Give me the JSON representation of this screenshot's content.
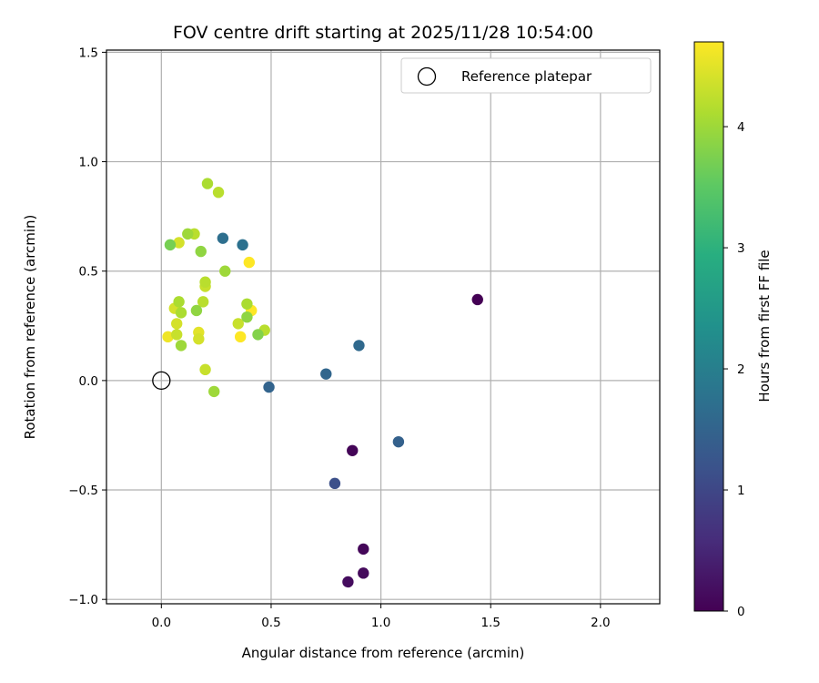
{
  "chart_data": {
    "type": "scatter",
    "title": "FOV centre drift starting at 2025/11/28 10:54:00",
    "xlabel": "Angular distance from reference (arcmin)",
    "ylabel": "Rotation from reference (arcmin)",
    "xlim": [
      -0.25,
      2.27
    ],
    "ylim": [
      -1.02,
      1.51
    ],
    "xticks": [
      0.0,
      0.5,
      1.0,
      1.5,
      2.0
    ],
    "xtick_labels": [
      "0.0",
      "0.5",
      "1.0",
      "1.5",
      "2.0"
    ],
    "yticks": [
      -1.0,
      -0.5,
      0.0,
      0.5,
      1.0,
      1.5
    ],
    "ytick_labels": [
      "−1.0",
      "−0.5",
      "0.0",
      "0.5",
      "1.0",
      "1.5"
    ],
    "grid": true,
    "legend": {
      "label": "Reference platepar",
      "position": "top-right"
    },
    "reference_point": {
      "x": 0.0,
      "y": 0.0
    },
    "colorbar": {
      "label": "Hours from first FF file",
      "range": [
        0,
        4.7
      ],
      "ticks": [
        0,
        1,
        2,
        3,
        4
      ],
      "tick_labels": [
        "0",
        "1",
        "2",
        "3",
        "4"
      ],
      "colormap": "viridis"
    },
    "points": [
      {
        "x": 1.44,
        "y": 0.37,
        "hours": 0.0
      },
      {
        "x": 0.87,
        "y": -0.32,
        "hours": 0.05
      },
      {
        "x": 0.92,
        "y": -0.77,
        "hours": 0.08
      },
      {
        "x": 0.92,
        "y": -0.88,
        "hours": 0.12
      },
      {
        "x": 0.85,
        "y": -0.92,
        "hours": 0.15
      },
      {
        "x": 0.79,
        "y": -0.47,
        "hours": 1.15
      },
      {
        "x": 1.08,
        "y": -0.28,
        "hours": 1.45
      },
      {
        "x": 0.49,
        "y": -0.03,
        "hours": 1.5
      },
      {
        "x": 0.75,
        "y": 0.03,
        "hours": 1.55
      },
      {
        "x": 0.9,
        "y": 0.16,
        "hours": 1.6
      },
      {
        "x": 0.28,
        "y": 0.65,
        "hours": 1.7
      },
      {
        "x": 0.37,
        "y": 0.62,
        "hours": 1.75
      },
      {
        "x": 0.04,
        "y": 0.62,
        "hours": 3.7
      },
      {
        "x": 0.08,
        "y": 0.63,
        "hours": 4.4
      },
      {
        "x": 0.12,
        "y": 0.67,
        "hours": 4.0
      },
      {
        "x": 0.15,
        "y": 0.67,
        "hours": 4.2
      },
      {
        "x": 0.18,
        "y": 0.59,
        "hours": 3.9
      },
      {
        "x": 0.21,
        "y": 0.9,
        "hours": 4.1
      },
      {
        "x": 0.26,
        "y": 0.86,
        "hours": 4.2
      },
      {
        "x": 0.29,
        "y": 0.5,
        "hours": 4.0
      },
      {
        "x": 0.4,
        "y": 0.54,
        "hours": 4.7
      },
      {
        "x": 0.2,
        "y": 0.45,
        "hours": 4.2
      },
      {
        "x": 0.2,
        "y": 0.43,
        "hours": 4.3
      },
      {
        "x": 0.08,
        "y": 0.36,
        "hours": 4.1
      },
      {
        "x": 0.19,
        "y": 0.36,
        "hours": 4.2
      },
      {
        "x": 0.06,
        "y": 0.33,
        "hours": 4.4
      },
      {
        "x": 0.09,
        "y": 0.31,
        "hours": 4.1
      },
      {
        "x": 0.16,
        "y": 0.32,
        "hours": 3.9
      },
      {
        "x": 0.39,
        "y": 0.35,
        "hours": 4.1
      },
      {
        "x": 0.41,
        "y": 0.32,
        "hours": 4.7
      },
      {
        "x": 0.39,
        "y": 0.29,
        "hours": 3.9
      },
      {
        "x": 0.07,
        "y": 0.26,
        "hours": 4.4
      },
      {
        "x": 0.35,
        "y": 0.26,
        "hours": 4.3
      },
      {
        "x": 0.47,
        "y": 0.23,
        "hours": 4.2
      },
      {
        "x": 0.17,
        "y": 0.22,
        "hours": 4.5
      },
      {
        "x": 0.03,
        "y": 0.2,
        "hours": 4.6
      },
      {
        "x": 0.07,
        "y": 0.21,
        "hours": 4.3
      },
      {
        "x": 0.17,
        "y": 0.19,
        "hours": 4.4
      },
      {
        "x": 0.36,
        "y": 0.2,
        "hours": 4.7
      },
      {
        "x": 0.44,
        "y": 0.21,
        "hours": 3.8
      },
      {
        "x": 0.09,
        "y": 0.16,
        "hours": 4.0
      },
      {
        "x": 0.2,
        "y": 0.05,
        "hours": 4.3
      },
      {
        "x": 0.24,
        "y": -0.05,
        "hours": 4.0
      }
    ]
  }
}
